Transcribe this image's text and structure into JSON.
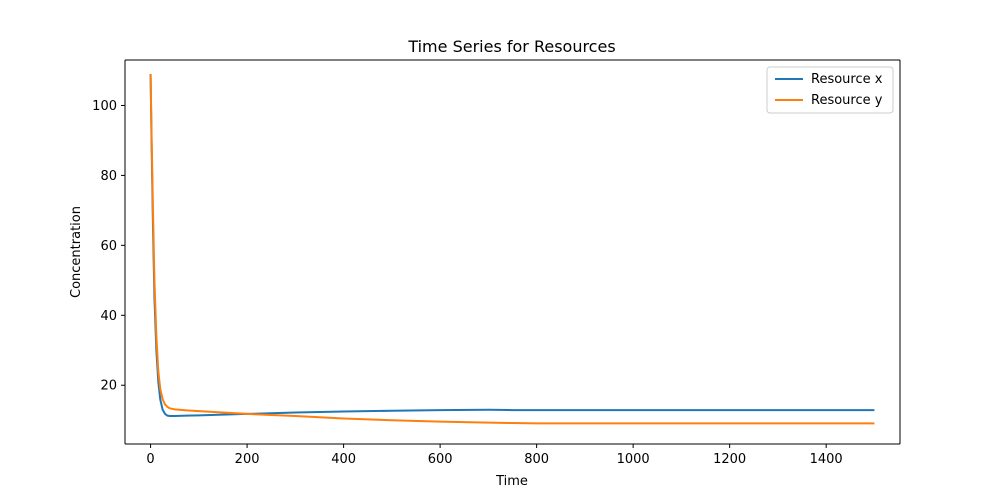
{
  "chart_data": {
    "type": "line",
    "title": "Time Series for Resources",
    "xlabel": "Time",
    "ylabel": "Concentration",
    "xlim": [
      -53,
      1553
    ],
    "ylim": [
      3.2,
      113
    ],
    "xticks": [
      0,
      200,
      400,
      600,
      800,
      1000,
      1200,
      1400
    ],
    "yticks": [
      20,
      40,
      60,
      80,
      100
    ],
    "grid": false,
    "legend_position": "top-right",
    "series": [
      {
        "name": "Resource x",
        "color": "#1f77b4",
        "x": [
          0,
          2,
          5,
          8,
          12,
          16,
          20,
          25,
          30,
          35,
          40,
          50,
          75,
          100,
          150,
          200,
          250,
          300,
          400,
          500,
          600,
          700,
          750,
          800,
          900,
          1000,
          1100,
          1200,
          1300,
          1400,
          1500
        ],
        "y": [
          109,
          90,
          65,
          45,
          30,
          21,
          16,
          13,
          11.8,
          11.3,
          11.2,
          11.2,
          11.3,
          11.4,
          11.6,
          11.8,
          12.0,
          12.2,
          12.5,
          12.7,
          12.9,
          13.0,
          12.9,
          12.9,
          12.9,
          12.9,
          12.9,
          12.9,
          12.9,
          12.9,
          12.9
        ]
      },
      {
        "name": "Resource y",
        "color": "#ff7f0e",
        "x": [
          0,
          2,
          5,
          8,
          12,
          16,
          20,
          25,
          30,
          35,
          40,
          50,
          75,
          100,
          150,
          200,
          250,
          300,
          400,
          500,
          600,
          700,
          750,
          800,
          900,
          1000,
          1100,
          1200,
          1300,
          1400,
          1500
        ],
        "y": [
          109,
          92,
          70,
          50,
          34,
          24,
          19,
          16,
          14.5,
          13.8,
          13.4,
          13.1,
          12.8,
          12.6,
          12.2,
          11.8,
          11.5,
          11.2,
          10.5,
          10.0,
          9.6,
          9.3,
          9.2,
          9.1,
          9.1,
          9.1,
          9.1,
          9.1,
          9.1,
          9.1,
          9.1
        ]
      }
    ]
  }
}
